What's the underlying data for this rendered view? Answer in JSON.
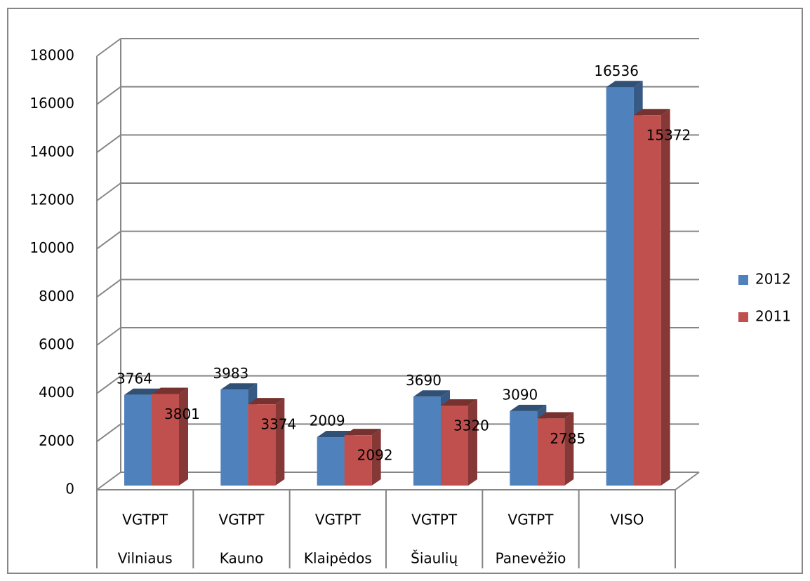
{
  "chart_data": {
    "type": "bar3d",
    "categories": [
      [
        "VGTPT",
        "Vilniaus"
      ],
      [
        "VGTPT",
        "Kauno"
      ],
      [
        "VGTPT",
        "Klaipėdos"
      ],
      [
        "VGTPT",
        "Šiaulių"
      ],
      [
        "VGTPT",
        "Panevėžio"
      ],
      [
        "VISO"
      ]
    ],
    "series": [
      {
        "name": "2012",
        "color": "#4f81bd",
        "values": [
          3764,
          3983,
          2009,
          3690,
          3090,
          16536
        ]
      },
      {
        "name": "2011",
        "color": "#c0504d",
        "values": [
          3801,
          3374,
          2092,
          3320,
          2785,
          15372
        ]
      }
    ],
    "ylim": [
      0,
      18000
    ],
    "yticks": [
      0,
      2000,
      4000,
      6000,
      8000,
      10000,
      12000,
      14000,
      16000,
      18000
    ],
    "grid": true,
    "legend": "right"
  }
}
